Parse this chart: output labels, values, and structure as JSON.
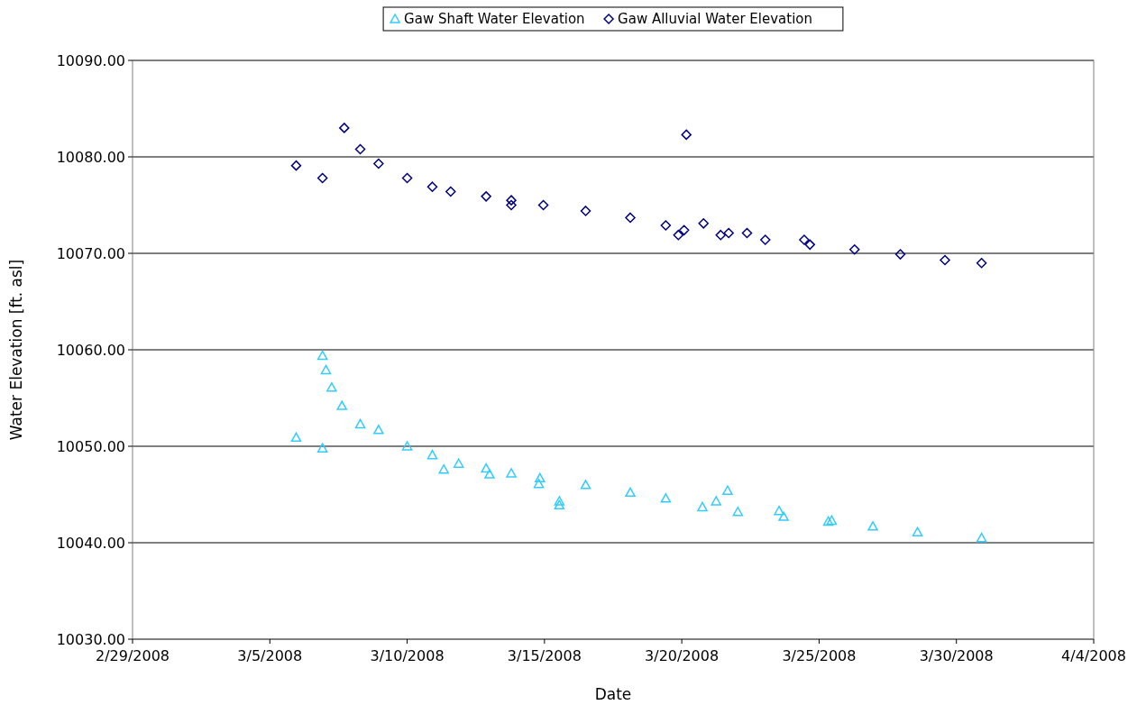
{
  "chart_data": {
    "type": "scatter",
    "xlabel": "Date",
    "ylabel": "Water Elevation [ft. asl]",
    "xlim": [
      "2008-02-29",
      "2008-04-04"
    ],
    "xticks": [
      {
        "value": "2008-02-29",
        "label": "2/29/2008"
      },
      {
        "value": "2008-03-05",
        "label": "3/5/2008"
      },
      {
        "value": "2008-03-10",
        "label": "3/10/2008"
      },
      {
        "value": "2008-03-15",
        "label": "3/15/2008"
      },
      {
        "value": "2008-03-20",
        "label": "3/20/2008"
      },
      {
        "value": "2008-03-25",
        "label": "3/25/2008"
      },
      {
        "value": "2008-03-30",
        "label": "3/30/2008"
      },
      {
        "value": "2008-04-04",
        "label": "4/4/2008"
      }
    ],
    "ylim": [
      10030,
      10090
    ],
    "yticks": [
      {
        "value": 10030,
        "label": "10030.00"
      },
      {
        "value": 10040,
        "label": "10040.00"
      },
      {
        "value": 10050,
        "label": "10050.00"
      },
      {
        "value": 10060,
        "label": "10060.00"
      },
      {
        "value": 10070,
        "label": "10070.00"
      },
      {
        "value": 10080,
        "label": "10080.00"
      },
      {
        "value": 10090,
        "label": "10090.00"
      }
    ],
    "grid": "y",
    "legend": "top",
    "series": [
      {
        "name": "Gaw Shaft Water Elevation",
        "color": "#33ccff",
        "marker": "triangle",
        "x": [
          "2008-03-05T23:00",
          "2008-03-06T22:00",
          "2008-03-06T22:00",
          "2008-03-07T01:00",
          "2008-03-07T06:00",
          "2008-03-07T15:00",
          "2008-03-08T07:00",
          "2008-03-08T23:00",
          "2008-03-10T00:00",
          "2008-03-10T22:00",
          "2008-03-11T08:00",
          "2008-03-11T21:00",
          "2008-03-12T21:00",
          "2008-03-13T00:00",
          "2008-03-13T19:00",
          "2008-03-14T19:00",
          "2008-03-14T20:00",
          "2008-03-15T13:00",
          "2008-03-15T13:00",
          "2008-03-16T12:00",
          "2008-03-18T03:00",
          "2008-03-19T10:00",
          "2008-03-20T18:00",
          "2008-03-21T06:00",
          "2008-03-21T16:00",
          "2008-03-22T01:00",
          "2008-03-23T13:00",
          "2008-03-23T17:00",
          "2008-03-25T08:00",
          "2008-03-25T11:00",
          "2008-03-26T23:00",
          "2008-03-28T14:00",
          "2008-03-30T22:00"
        ],
        "values": [
          10050.9,
          10049.8,
          10059.4,
          10057.9,
          10056.1,
          10054.2,
          10052.3,
          10051.7,
          10050.0,
          10049.1,
          10047.6,
          10048.2,
          10047.7,
          10047.1,
          10047.2,
          10046.1,
          10046.7,
          10044.3,
          10043.9,
          10046.0,
          10045.2,
          10044.6,
          10043.7,
          10044.3,
          10045.4,
          10043.2,
          10043.3,
          10042.7,
          10042.2,
          10042.3,
          10041.7,
          10041.1,
          10040.5
        ]
      },
      {
        "name": "Gaw Alluvial Water Elevation",
        "color": "#000080",
        "marker": "diamond",
        "x": [
          "2008-03-05T23:00",
          "2008-03-06T22:00",
          "2008-03-07T17:00",
          "2008-03-08T07:00",
          "2008-03-08T23:00",
          "2008-03-10T00:00",
          "2008-03-10T22:00",
          "2008-03-11T14:00",
          "2008-03-12T21:00",
          "2008-03-13T19:00",
          "2008-03-13T19:00",
          "2008-03-14T23:00",
          "2008-03-16T12:00",
          "2008-03-18T03:00",
          "2008-03-19T10:00",
          "2008-03-19T21:00",
          "2008-03-20T02:00",
          "2008-03-20T04:00",
          "2008-03-20T19:00",
          "2008-03-21T10:00",
          "2008-03-21T17:00",
          "2008-03-22T09:00",
          "2008-03-23T01:00",
          "2008-03-24T11:00",
          "2008-03-24T16:00",
          "2008-03-26T07:00",
          "2008-03-27T23:00",
          "2008-03-29T14:00",
          "2008-03-30T22:00"
        ],
        "values": [
          10079.1,
          10077.8,
          10083.0,
          10080.8,
          10079.3,
          10077.8,
          10076.9,
          10076.4,
          10075.9,
          10075.5,
          10075.0,
          10075.0,
          10074.4,
          10073.7,
          10072.9,
          10071.9,
          10072.4,
          10082.3,
          10073.1,
          10071.9,
          10072.1,
          10072.1,
          10071.4,
          10071.4,
          10070.9,
          10070.4,
          10069.9,
          10069.3,
          10069.0
        ]
      }
    ]
  }
}
